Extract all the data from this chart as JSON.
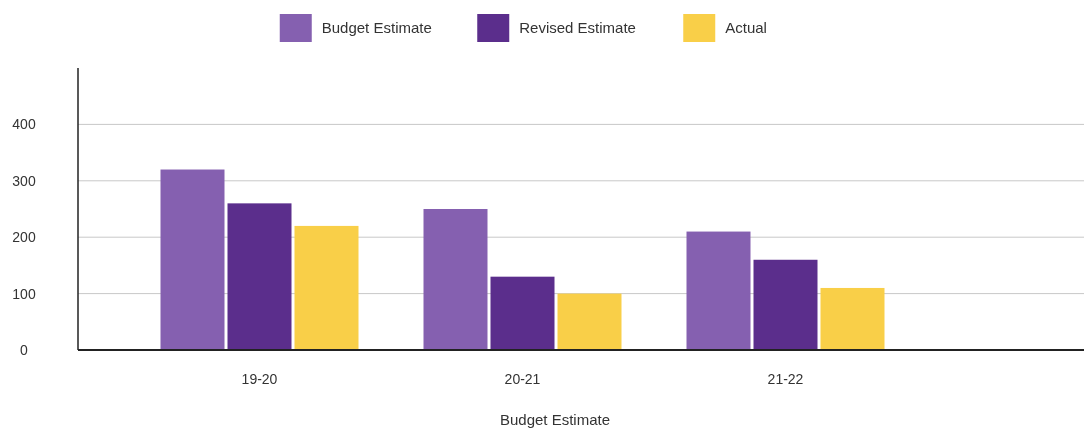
{
  "chart_data": {
    "type": "bar",
    "xlabel": "Budget Estimate",
    "categories": [
      "19-20",
      "20-21",
      "21-22"
    ],
    "series": [
      {
        "name": "Budget Estimate",
        "color": "#8560b0",
        "values": [
          320,
          250,
          210
        ]
      },
      {
        "name": "Revised Estimate",
        "color": "#5b2e8c",
        "values": [
          260,
          130,
          160
        ]
      },
      {
        "name": "Actual",
        "color": "#f9cf48",
        "values": [
          220,
          100,
          110
        ]
      }
    ],
    "ylim": [
      0,
      500
    ],
    "yticks": [
      0,
      100,
      200,
      300,
      400
    ],
    "grid": "y",
    "legend": "top"
  }
}
